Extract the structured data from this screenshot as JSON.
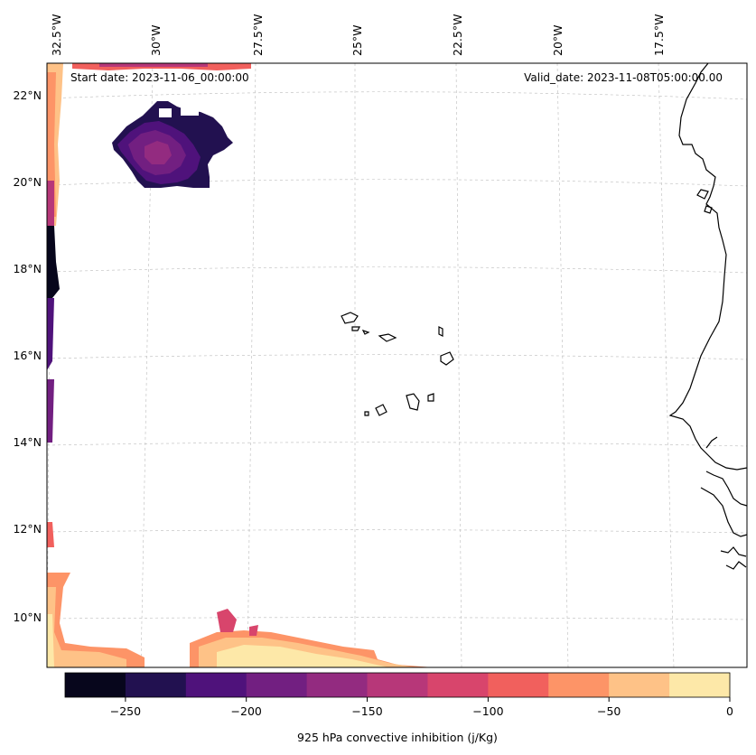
{
  "map": {
    "start_date_label": "Start date: 2023-11-06_00:00:00",
    "valid_date_label": "Valid_date: 2023-11-08T05:00:00.00",
    "lon_labels": [
      "32.5°W",
      "30°W",
      "27.5°W",
      "25°W",
      "22.5°W",
      "20°W",
      "17.5°W"
    ],
    "lat_labels": [
      "22°N",
      "20°N",
      "18°N",
      "16°N",
      "14°N",
      "12°N",
      "10°N"
    ],
    "region": "Cabo Verde / West Africa coast"
  },
  "colorbar": {
    "label": "925 hPa convective inhibition (j/Kg)",
    "tick_labels": [
      "−250",
      "−200",
      "−150",
      "−100",
      "−50",
      "0"
    ],
    "levels": [
      -275,
      -250,
      -225,
      -200,
      -175,
      -150,
      -125,
      -100,
      -75,
      -50,
      -25,
      0
    ],
    "colors": [
      "#07061c",
      "#221150",
      "#4f127b",
      "#721f81",
      "#932b80",
      "#b73779",
      "#d8456c",
      "#f1605d",
      "#fd9467",
      "#fec287",
      "#fde8a8"
    ]
  }
}
